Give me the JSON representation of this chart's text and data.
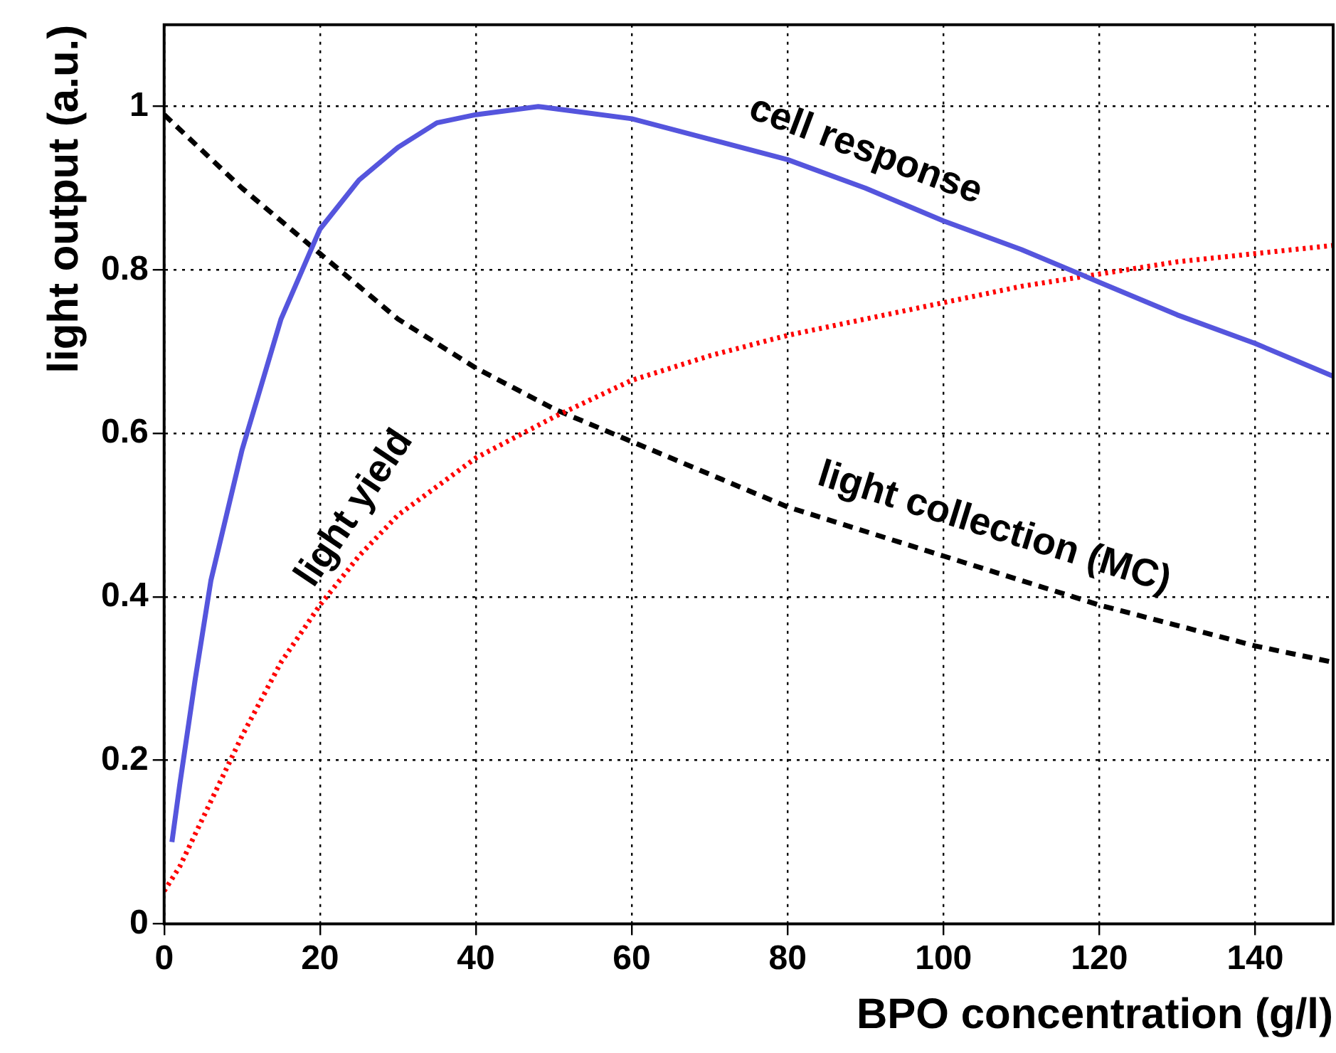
{
  "chart_data": {
    "type": "line",
    "xlabel": "BPO concentration (g/l)",
    "ylabel": "light output (a.u.)",
    "xlim": [
      0,
      150
    ],
    "xticks": [
      0,
      20,
      40,
      60,
      80,
      100,
      120,
      140
    ],
    "ylim": [
      0,
      1.1
    ],
    "yticks": [
      0,
      0.2,
      0.4,
      0.6,
      0.8,
      1
    ],
    "grid": true,
    "legend": false,
    "marker": "none",
    "series": [
      {
        "name": "cell response",
        "color": "#5555dd",
        "line_style": "solid",
        "x": [
          1,
          2,
          4,
          6,
          10,
          15,
          20,
          25,
          30,
          35,
          40,
          48,
          60,
          70,
          80,
          90,
          100,
          110,
          120,
          130,
          140,
          150
        ],
        "values": [
          0.1,
          0.17,
          0.3,
          0.42,
          0.58,
          0.74,
          0.85,
          0.91,
          0.95,
          0.98,
          0.99,
          1.0,
          0.985,
          0.96,
          0.935,
          0.9,
          0.86,
          0.825,
          0.785,
          0.745,
          0.71,
          0.67
        ]
      },
      {
        "name": "light yield",
        "color": "#ff0000",
        "line_style": "dotted",
        "x": [
          0,
          2,
          5,
          10,
          15,
          20,
          25,
          30,
          40,
          50,
          60,
          70,
          80,
          90,
          100,
          110,
          120,
          130,
          140,
          150
        ],
        "values": [
          0.04,
          0.07,
          0.13,
          0.23,
          0.32,
          0.39,
          0.45,
          0.5,
          0.57,
          0.62,
          0.665,
          0.695,
          0.72,
          0.74,
          0.76,
          0.78,
          0.795,
          0.81,
          0.82,
          0.83
        ]
      },
      {
        "name": "light collection (MC)",
        "color": "#000000",
        "line_style": "dashed",
        "x": [
          0,
          10,
          20,
          30,
          40,
          50,
          60,
          70,
          80,
          90,
          100,
          110,
          120,
          130,
          140,
          150
        ],
        "values": [
          0.99,
          0.9,
          0.82,
          0.74,
          0.68,
          0.63,
          0.59,
          0.55,
          0.51,
          0.48,
          0.45,
          0.42,
          0.39,
          0.365,
          0.34,
          0.32
        ]
      }
    ]
  }
}
